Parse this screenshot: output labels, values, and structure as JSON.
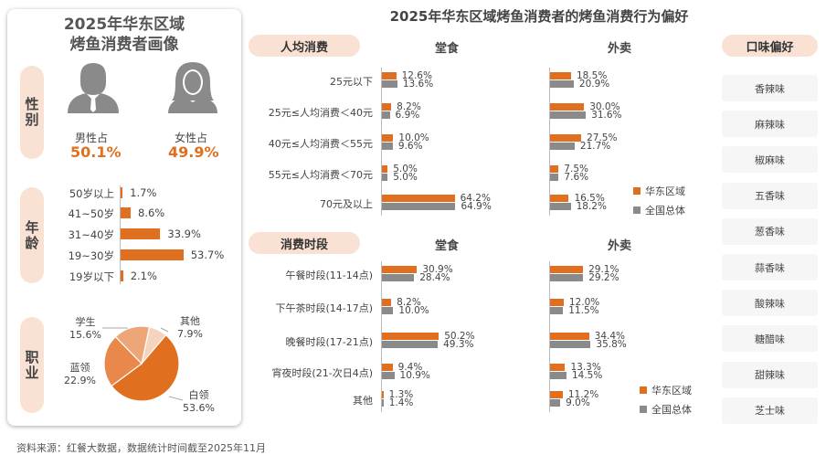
{
  "colors": {
    "orange": "#e07020",
    "gray": "#8a8a8a",
    "pill": "#f9e2d4"
  },
  "left": {
    "title_line1": "2025年华东区域",
    "title_line2": "烤鱼消费者画像",
    "gender": {
      "label": "性别",
      "male_label": "男性占",
      "male_value": "50.1%",
      "female_label": "女性占",
      "female_value": "49.9%"
    },
    "age": {
      "label": "年龄",
      "categories": [
        "50岁以上",
        "41~50岁",
        "31~40岁",
        "19~30岁",
        "19岁以下"
      ],
      "values": [
        1.7,
        8.6,
        33.9,
        53.7,
        2.1
      ],
      "value_labels": [
        "1.7%",
        "8.6%",
        "33.9%",
        "53.7%",
        "2.1%"
      ]
    },
    "occupation": {
      "label": "职业",
      "slices": [
        {
          "name": "其他",
          "value": 7.9,
          "label": "7.9%",
          "color": "#f5d4bd"
        },
        {
          "name": "白领",
          "value": 53.6,
          "label": "53.6%",
          "color": "#e07020"
        },
        {
          "name": "蓝领",
          "value": 22.9,
          "label": "22.9%",
          "color": "#e8884a"
        },
        {
          "name": "学生",
          "value": 15.6,
          "label": "15.6%",
          "color": "#eda677"
        }
      ]
    }
  },
  "title": "2025年华东区域烤鱼消费者的烤鱼消费行为偏好",
  "chart_data": [
    {
      "type": "bar",
      "section": "人均消费",
      "columns": [
        "堂食",
        "外卖"
      ],
      "categories": [
        "25元以下",
        "25元≤人均消费＜40元",
        "40元≤人均消费＜55元",
        "55元≤人均消费＜70元",
        "70元及以上"
      ],
      "series": [
        {
          "name": "华东区域",
          "dine_in": [
            12.6,
            8.2,
            10.0,
            5.0,
            64.2
          ],
          "takeout": [
            18.5,
            30.0,
            27.5,
            7.5,
            16.5
          ]
        },
        {
          "name": "全国总体",
          "dine_in": [
            13.6,
            6.9,
            9.6,
            5.0,
            64.9
          ],
          "takeout": [
            20.9,
            31.6,
            21.7,
            7.6,
            18.2
          ]
        }
      ]
    },
    {
      "type": "bar",
      "section": "消费时段",
      "columns": [
        "堂食",
        "外卖"
      ],
      "categories": [
        "午餐时段(11-14点)",
        "下午茶时段(14-17点)",
        "晚餐时段(17-21点)",
        "宵夜时段(21-次日4点)",
        "其他"
      ],
      "series": [
        {
          "name": "华东区域",
          "dine_in": [
            30.9,
            8.2,
            50.2,
            9.4,
            1.3
          ],
          "takeout": [
            29.1,
            12.0,
            34.4,
            13.3,
            11.2
          ]
        },
        {
          "name": "全国总体",
          "dine_in": [
            28.4,
            10.0,
            49.3,
            10.9,
            1.4
          ],
          "takeout": [
            29.2,
            11.5,
            35.8,
            14.5,
            9.0
          ]
        }
      ]
    }
  ],
  "legend": [
    "华东区域",
    "全国总体"
  ],
  "taste": {
    "label": "口味偏好",
    "items": [
      "香辣味",
      "麻辣味",
      "椒麻味",
      "五香味",
      "葱香味",
      "蒜香味",
      "酸辣味",
      "糖醋味",
      "甜辣味",
      "芝士味"
    ]
  },
  "source": "资料来源：红餐大数据，数据统计时间截至2025年11月"
}
